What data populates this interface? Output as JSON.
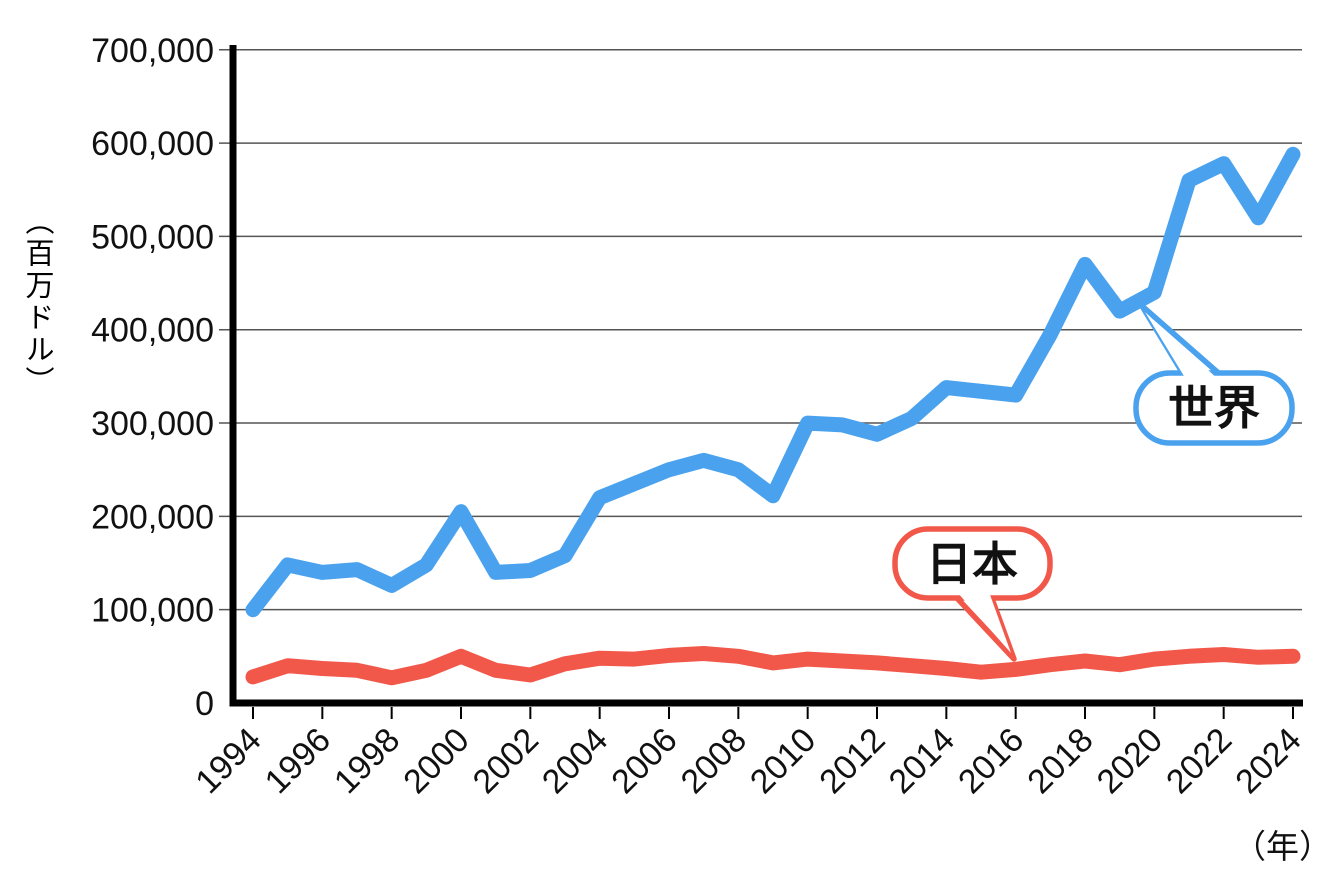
{
  "figure": {
    "y_axis": {
      "unit_label": "（百万ドル）",
      "ticks": [
        "700,000",
        "600,000",
        "500,000",
        "400,000",
        "300,000",
        "200,000",
        "100,000",
        "0"
      ],
      "tick_values": [
        700000,
        600000,
        500000,
        400000,
        300000,
        200000,
        100000,
        0
      ]
    },
    "x_axis": {
      "unit_label": "（年）",
      "tick_years": [
        1994,
        1996,
        1998,
        2000,
        2002,
        2004,
        2006,
        2008,
        2010,
        2012,
        2014,
        2016,
        2018,
        2020,
        2022,
        2024
      ]
    },
    "callouts": [
      {
        "label": "世界",
        "color": "#4AA2EE"
      },
      {
        "label": "日本",
        "color": "#F2584A"
      }
    ],
    "colors": {
      "world_line": "#4AA2EE",
      "japan_line": "#F2584A",
      "grid": "#555555",
      "axis": "#000000"
    }
  },
  "chart_data": {
    "type": "line",
    "x": [
      1994,
      1995,
      1996,
      1997,
      1998,
      1999,
      2000,
      2001,
      2002,
      2003,
      2004,
      2005,
      2006,
      2007,
      2008,
      2009,
      2010,
      2011,
      2012,
      2013,
      2014,
      2015,
      2016,
      2017,
      2018,
      2019,
      2020,
      2021,
      2022,
      2023,
      2024
    ],
    "series": [
      {
        "name": "世界",
        "color": "#4AA2EE",
        "values": [
          100000,
          148000,
          140000,
          143000,
          126000,
          148000,
          205000,
          140000,
          142000,
          158000,
          220000,
          235000,
          250000,
          260000,
          250000,
          222000,
          300000,
          298000,
          288000,
          305000,
          338000,
          334000,
          330000,
          395000,
          470000,
          420000,
          440000,
          560000,
          578000,
          520000,
          588000
        ]
      },
      {
        "name": "日本",
        "color": "#F2584A",
        "values": [
          28000,
          40000,
          37000,
          35000,
          27000,
          35000,
          50000,
          35000,
          30000,
          42000,
          48000,
          47000,
          51000,
          53000,
          50000,
          43000,
          47000,
          45000,
          43000,
          40000,
          37000,
          33000,
          36000,
          41000,
          45000,
          41000,
          47000,
          50000,
          52000,
          49000,
          50000
        ]
      }
    ],
    "title": "",
    "xlabel": "（年）",
    "ylabel": "（百万ドル）",
    "ylim": [
      0,
      700000
    ],
    "xlim": [
      1994,
      2024
    ],
    "grid": true,
    "legend_position": "callout-bubbles"
  }
}
